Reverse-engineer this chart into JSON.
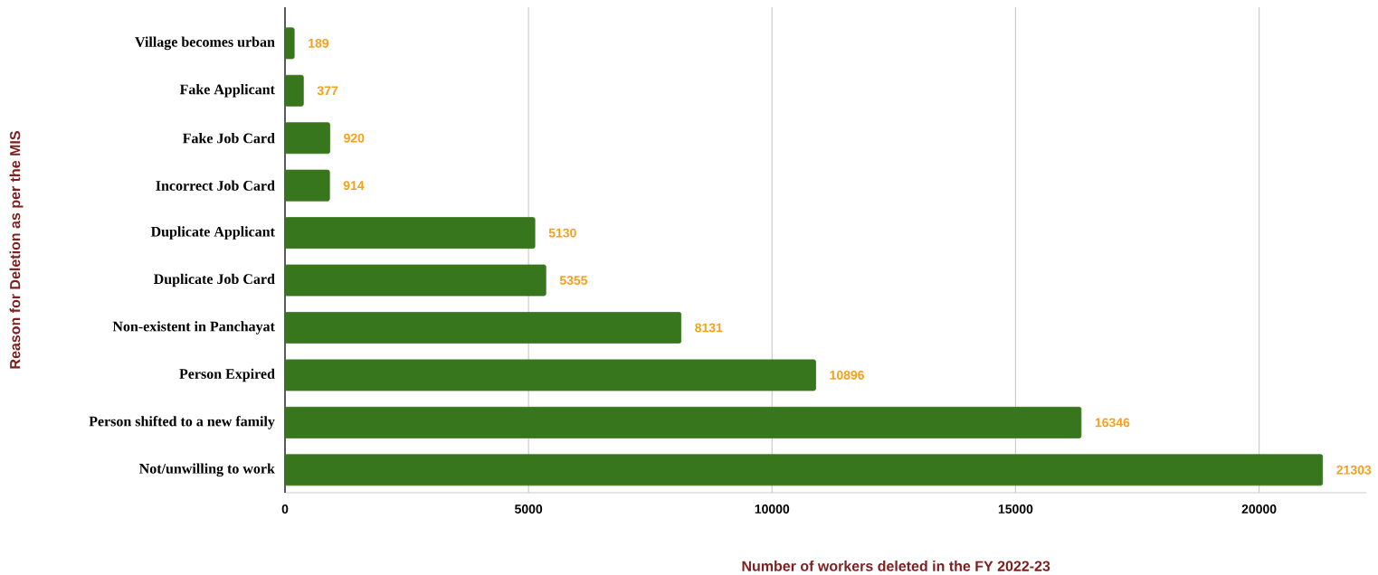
{
  "chart_data": {
    "type": "bar",
    "orientation": "horizontal",
    "xlabel": "Number of workers deleted in the FY 2022-23",
    "ylabel": "Reason for Deletion as per the MIS",
    "categories": [
      "Village becomes urban",
      "Fake Applicant",
      "Fake Job Card",
      "Incorrect Job Card",
      "Duplicate Applicant",
      "Duplicate Job Card",
      "Non-existent in Panchayat",
      "Person Expired",
      "Person shifted to a new family",
      "Not/unwilling to work"
    ],
    "values": [
      189,
      377,
      920,
      914,
      5130,
      5355,
      8131,
      10896,
      16346,
      21303
    ],
    "color": "#38761d",
    "data_labels": true,
    "xlim": [
      0,
      22200
    ],
    "xticks": [
      0,
      5000,
      10000,
      15000,
      20000
    ],
    "grid": "x"
  }
}
